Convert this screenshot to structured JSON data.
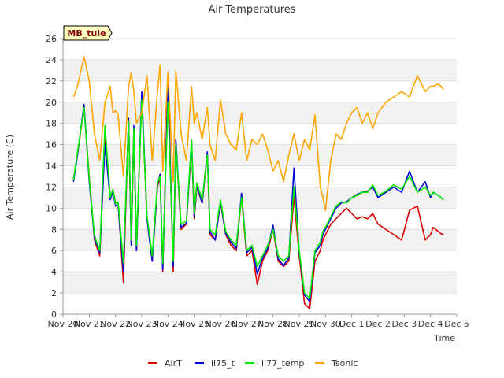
{
  "chart_data": {
    "type": "line",
    "title": "Air Temperatures",
    "xlabel": "Time",
    "ylabel": "Air Temperature (C)",
    "ylim": [
      0,
      26
    ],
    "yticks": [
      0,
      2,
      4,
      6,
      8,
      10,
      12,
      14,
      16,
      18,
      20,
      22,
      24,
      26
    ],
    "xlim": [
      0,
      15
    ],
    "xticks": [
      {
        "x": 0,
        "label": "Nov 20"
      },
      {
        "x": 1,
        "label": "Nov 21"
      },
      {
        "x": 2,
        "label": "Nov 22"
      },
      {
        "x": 3,
        "label": "Nov 23"
      },
      {
        "x": 4,
        "label": "Nov 24"
      },
      {
        "x": 5,
        "label": "Nov 25"
      },
      {
        "x": 6,
        "label": "Nov 26"
      },
      {
        "x": 7,
        "label": "Nov 27"
      },
      {
        "x": 8,
        "label": "Nov 28"
      },
      {
        "x": 9,
        "label": "Nov 29"
      },
      {
        "x": 10,
        "label": "Nov 30"
      },
      {
        "x": 11,
        "label": "Dec 1"
      },
      {
        "x": 12,
        "label": "Dec 2"
      },
      {
        "x": 13,
        "label": "Dec 3"
      },
      {
        "x": 14,
        "label": "Dec 4"
      },
      {
        "x": 15,
        "label": "Dec 5"
      }
    ],
    "station_badge": "MB_tule",
    "grid": "horizontal bands",
    "legend_position": "bottom",
    "series": [
      {
        "name": "AirT",
        "color": "#dd0000",
        "x": [
          0.4,
          0.55,
          0.8,
          1.0,
          1.2,
          1.4,
          1.6,
          1.8,
          1.9,
          2.0,
          2.1,
          2.3,
          2.5,
          2.6,
          2.7,
          2.8,
          3.0,
          3.2,
          3.4,
          3.6,
          3.7,
          3.8,
          4.0,
          4.2,
          4.3,
          4.5,
          4.7,
          4.9,
          5.0,
          5.1,
          5.3,
          5.5,
          5.6,
          5.8,
          6.0,
          6.2,
          6.4,
          6.6,
          6.8,
          7.0,
          7.2,
          7.4,
          7.6,
          7.8,
          8.0,
          8.2,
          8.4,
          8.6,
          8.8,
          9.0,
          9.2,
          9.4,
          9.6,
          9.8,
          9.9,
          10.0,
          10.2,
          10.4,
          10.6,
          10.8,
          11.0,
          11.2,
          11.4,
          11.6,
          11.8,
          12.0,
          12.3,
          12.6,
          12.9,
          13.2,
          13.5,
          13.8,
          14.0,
          14.1,
          14.3,
          14.4,
          14.5
        ],
        "y": [
          12.8,
          15.0,
          19.5,
          13.0,
          7.0,
          5.5,
          16.5,
          11.0,
          11.8,
          10.5,
          10.5,
          3.0,
          18.5,
          6.5,
          17.5,
          6.0,
          20.5,
          9.0,
          5.0,
          12.0,
          13.0,
          4.0,
          22.5,
          4.0,
          16.0,
          8.0,
          8.5,
          16.0,
          9.0,
          12.0,
          10.5,
          15.0,
          7.5,
          7.0,
          10.5,
          7.5,
          6.5,
          6.0,
          11.0,
          5.5,
          6.0,
          2.8,
          5.0,
          6.0,
          8.0,
          5.0,
          4.5,
          5.0,
          11.0,
          5.5,
          1.0,
          0.5,
          5.0,
          6.0,
          7.0,
          7.5,
          8.5,
          9.0,
          9.5,
          10.0,
          9.5,
          9.0,
          9.2,
          9.0,
          9.5,
          8.5,
          8.0,
          7.5,
          7.0,
          9.8,
          10.2,
          7.0,
          7.5,
          8.2,
          7.8,
          7.6,
          7.5
        ]
      },
      {
        "name": "li75_t",
        "color": "#0000dd",
        "x": [
          0.4,
          0.55,
          0.8,
          1.0,
          1.2,
          1.4,
          1.6,
          1.8,
          1.9,
          2.0,
          2.1,
          2.3,
          2.5,
          2.6,
          2.7,
          2.8,
          3.0,
          3.2,
          3.4,
          3.6,
          3.7,
          3.8,
          4.0,
          4.2,
          4.3,
          4.5,
          4.7,
          4.9,
          5.0,
          5.1,
          5.3,
          5.5,
          5.6,
          5.8,
          6.0,
          6.2,
          6.4,
          6.6,
          6.8,
          7.0,
          7.2,
          7.4,
          7.6,
          7.8,
          8.0,
          8.2,
          8.4,
          8.6,
          8.8,
          9.0,
          9.2,
          9.4,
          9.6,
          9.8,
          9.9,
          10.0,
          10.2,
          10.4,
          10.6,
          10.8,
          11.0,
          11.2,
          11.4,
          11.6,
          11.8,
          12.0,
          12.3,
          12.6,
          12.9,
          13.2,
          13.5,
          13.8,
          14.0,
          14.1,
          14.3,
          14.4,
          14.5
        ],
        "y": [
          12.5,
          15.0,
          19.8,
          12.5,
          7.2,
          5.8,
          16.0,
          10.8,
          11.5,
          10.2,
          10.3,
          4.0,
          18.5,
          6.5,
          17.8,
          6.0,
          21.0,
          9.0,
          5.0,
          12.2,
          13.2,
          4.2,
          21.2,
          4.5,
          16.5,
          8.2,
          8.6,
          16.3,
          9.2,
          12.2,
          10.5,
          15.3,
          7.8,
          7.0,
          10.6,
          7.6,
          6.8,
          6.2,
          11.4,
          5.8,
          6.3,
          3.8,
          5.3,
          6.2,
          8.4,
          5.2,
          4.6,
          5.3,
          13.8,
          5.8,
          1.8,
          1.2,
          5.8,
          6.5,
          7.5,
          8.0,
          9.0,
          10.0,
          10.5,
          10.6,
          11.0,
          11.3,
          11.5,
          11.6,
          12.0,
          11.0,
          11.5,
          12.0,
          11.5,
          13.5,
          11.5,
          12.5,
          11.0,
          11.5,
          11.2,
          11.0,
          10.8
        ]
      },
      {
        "name": "li77_temp",
        "color": "#00ee00",
        "x": [
          0.4,
          0.55,
          0.8,
          1.0,
          1.2,
          1.4,
          1.6,
          1.8,
          1.9,
          2.0,
          2.1,
          2.3,
          2.5,
          2.6,
          2.7,
          2.8,
          3.0,
          3.2,
          3.4,
          3.6,
          3.7,
          3.8,
          4.0,
          4.2,
          4.3,
          4.5,
          4.7,
          4.9,
          5.0,
          5.1,
          5.3,
          5.5,
          5.6,
          5.8,
          6.0,
          6.2,
          6.4,
          6.6,
          6.8,
          7.0,
          7.2,
          7.4,
          7.6,
          7.8,
          8.0,
          8.2,
          8.4,
          8.6,
          8.8,
          9.0,
          9.2,
          9.4,
          9.6,
          9.8,
          9.9,
          10.0,
          10.2,
          10.4,
          10.6,
          10.8,
          11.0,
          11.2,
          11.4,
          11.6,
          11.8,
          12.0,
          12.3,
          12.6,
          12.9,
          13.2,
          13.5,
          13.8,
          14.0,
          14.1,
          14.3,
          14.4,
          14.5
        ],
        "y": [
          12.7,
          15.2,
          19.5,
          12.8,
          7.4,
          6.0,
          17.8,
          11.0,
          11.8,
          10.4,
          10.6,
          4.8,
          18.2,
          7.0,
          17.5,
          6.5,
          20.2,
          9.3,
          5.5,
          12.4,
          13.0,
          4.8,
          20.0,
          5.0,
          16.0,
          8.5,
          8.8,
          16.5,
          9.5,
          12.4,
          10.8,
          15.0,
          8.0,
          7.5,
          10.8,
          7.8,
          7.0,
          6.5,
          11.0,
          6.0,
          6.5,
          4.5,
          5.5,
          6.5,
          8.0,
          5.5,
          5.0,
          5.5,
          12.0,
          6.0,
          2.0,
          1.5,
          6.0,
          6.8,
          7.8,
          8.2,
          9.2,
          10.2,
          10.6,
          10.5,
          11.0,
          11.2,
          11.5,
          11.5,
          12.2,
          11.2,
          11.6,
          12.2,
          11.8,
          13.0,
          11.5,
          12.0,
          11.2,
          11.5,
          11.2,
          11.0,
          10.8
        ]
      },
      {
        "name": "Tsonic",
        "color": "#ffa500",
        "x": [
          0.4,
          0.55,
          0.8,
          1.0,
          1.2,
          1.4,
          1.6,
          1.8,
          1.9,
          2.0,
          2.1,
          2.3,
          2.5,
          2.6,
          2.7,
          2.8,
          3.0,
          3.2,
          3.4,
          3.6,
          3.7,
          3.8,
          4.0,
          4.2,
          4.3,
          4.5,
          4.7,
          4.9,
          5.0,
          5.1,
          5.3,
          5.5,
          5.6,
          5.8,
          6.0,
          6.2,
          6.4,
          6.6,
          6.8,
          7.0,
          7.2,
          7.4,
          7.6,
          7.8,
          8.0,
          8.2,
          8.4,
          8.6,
          8.8,
          9.0,
          9.2,
          9.4,
          9.6,
          9.8,
          9.9,
          10.0,
          10.2,
          10.4,
          10.6,
          10.8,
          11.0,
          11.2,
          11.4,
          11.6,
          11.8,
          12.0,
          12.3,
          12.6,
          12.9,
          13.2,
          13.5,
          13.8,
          14.0,
          14.1,
          14.3,
          14.4,
          14.5
        ],
        "y": [
          20.5,
          21.5,
          24.3,
          22.0,
          17.0,
          14.5,
          20.0,
          21.5,
          19.0,
          19.2,
          18.8,
          13.0,
          21.5,
          22.8,
          21.0,
          18.0,
          19.0,
          22.5,
          14.5,
          21.0,
          23.5,
          13.5,
          22.8,
          12.5,
          23.0,
          17.0,
          14.5,
          21.5,
          18.0,
          19.0,
          16.5,
          19.5,
          16.0,
          14.5,
          20.2,
          17.0,
          16.0,
          15.5,
          19.0,
          14.5,
          16.5,
          16.0,
          17.0,
          15.5,
          13.5,
          14.5,
          12.5,
          15.0,
          17.0,
          14.5,
          16.5,
          15.5,
          18.8,
          12.0,
          11.0,
          9.8,
          14.5,
          17.0,
          16.5,
          18.0,
          19.0,
          19.5,
          18.0,
          19.0,
          17.5,
          19.0,
          20.0,
          20.5,
          21.0,
          20.5,
          22.5,
          21.0,
          21.5,
          21.5,
          21.7,
          21.5,
          21.2
        ]
      }
    ]
  }
}
